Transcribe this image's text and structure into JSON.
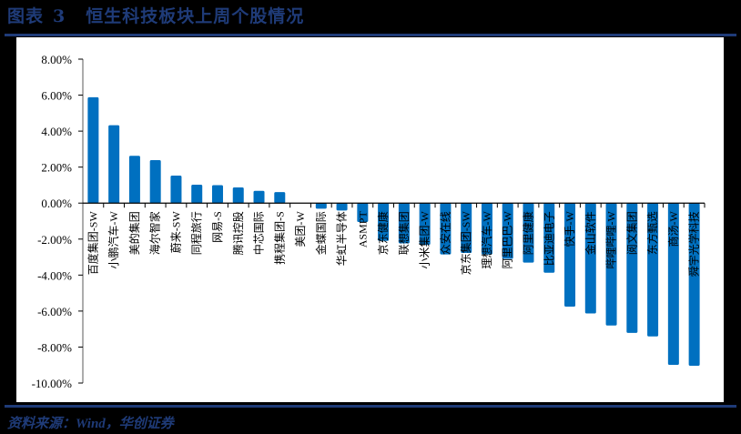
{
  "header": {
    "figure_label": "图表",
    "figure_number": "3",
    "title": "恒生科技板块上周个股情况"
  },
  "footer": {
    "source": "资料来源：Wind，华创证券"
  },
  "colors": {
    "bar": "#0070c0",
    "rule": "#1f3b78",
    "title": "#1f3b78"
  },
  "chart_data": {
    "type": "bar",
    "title": "恒生科技板块上周个股情况",
    "xlabel": "",
    "ylabel": "",
    "ylim": [
      -0.1,
      0.08
    ],
    "yticks": [
      "8.00%",
      "6.00%",
      "4.00%",
      "2.00%",
      "0.00%",
      "-2.00%",
      "-4.00%",
      "-6.00%",
      "-8.00%",
      "-10.00%"
    ],
    "ytick_values": [
      0.08,
      0.06,
      0.04,
      0.02,
      0.0,
      -0.02,
      -0.04,
      -0.06,
      -0.08,
      -0.1
    ],
    "grid": false,
    "legend": null,
    "categories": [
      "百度集团-SW",
      "小鹏汽车-W",
      "美的集团",
      "海尔智家",
      "蔚来-SW",
      "同程旅行",
      "网易-S",
      "腾讯控股",
      "中芯国际",
      "携程集团-S",
      "美团-W",
      "金蝶国际",
      "华虹半导体",
      "ASMPT",
      "京东健康",
      "联想集团",
      "小米集团-W",
      "众安在线",
      "京东集团-SW",
      "理想汽车-W",
      "阿里巴巴-W",
      "阿里健康",
      "比亚迪电子",
      "快手-W",
      "金山软件",
      "哔哩哔哩-W",
      "阅文集团",
      "东方甄选",
      "商汤-W",
      "舜宇光学科技"
    ],
    "values": [
      0.0588,
      0.0433,
      0.0263,
      0.0239,
      0.0153,
      0.0102,
      0.01,
      0.0087,
      0.0068,
      0.0061,
      0.0,
      -0.0031,
      -0.0041,
      -0.0105,
      -0.021,
      -0.0224,
      -0.0232,
      -0.0285,
      -0.0277,
      -0.0285,
      -0.031,
      -0.0331,
      -0.0387,
      -0.0575,
      -0.0613,
      -0.068,
      -0.0721,
      -0.0741,
      -0.0899,
      -0.0904
    ]
  }
}
